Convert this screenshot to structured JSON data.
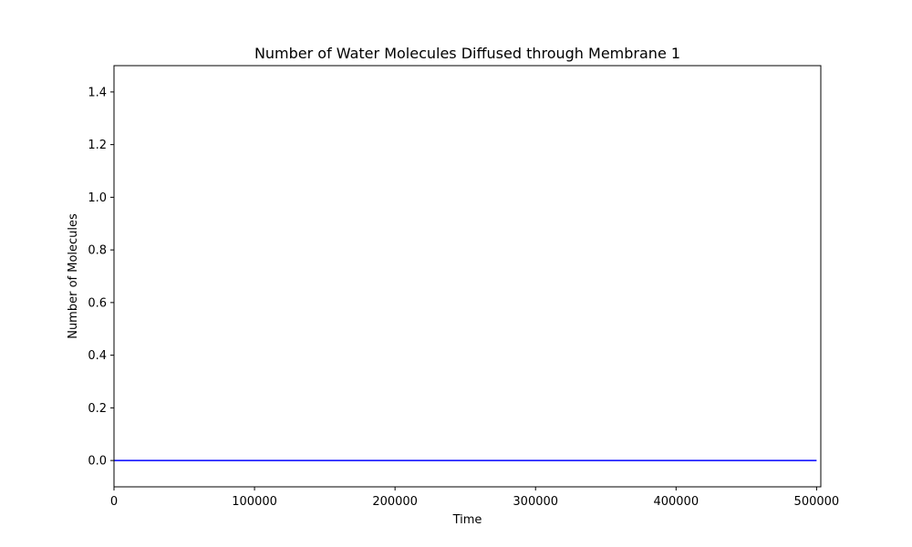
{
  "chart_data": {
    "type": "line",
    "title": "Number of Water Molecules Diffused through Membrane 1",
    "xlabel": "Time",
    "ylabel": "Number of Molecules",
    "xlim": [
      0,
      503000
    ],
    "ylim": [
      -0.1,
      1.5
    ],
    "xticks": [
      0,
      100000,
      200000,
      300000,
      400000,
      500000
    ],
    "xtick_labels": [
      "0",
      "100000",
      "200000",
      "300000",
      "400000",
      "500000"
    ],
    "yticks": [
      0.0,
      0.2,
      0.4,
      0.6,
      0.8,
      1.0,
      1.2,
      1.4
    ],
    "ytick_labels": [
      "0.0",
      "0.2",
      "0.4",
      "0.6",
      "0.8",
      "1.0",
      "1.2",
      "1.4"
    ],
    "grid": false,
    "series": [
      {
        "color": "#0000ff",
        "x": [
          0,
          500000
        ],
        "y": [
          0,
          0
        ]
      }
    ]
  }
}
